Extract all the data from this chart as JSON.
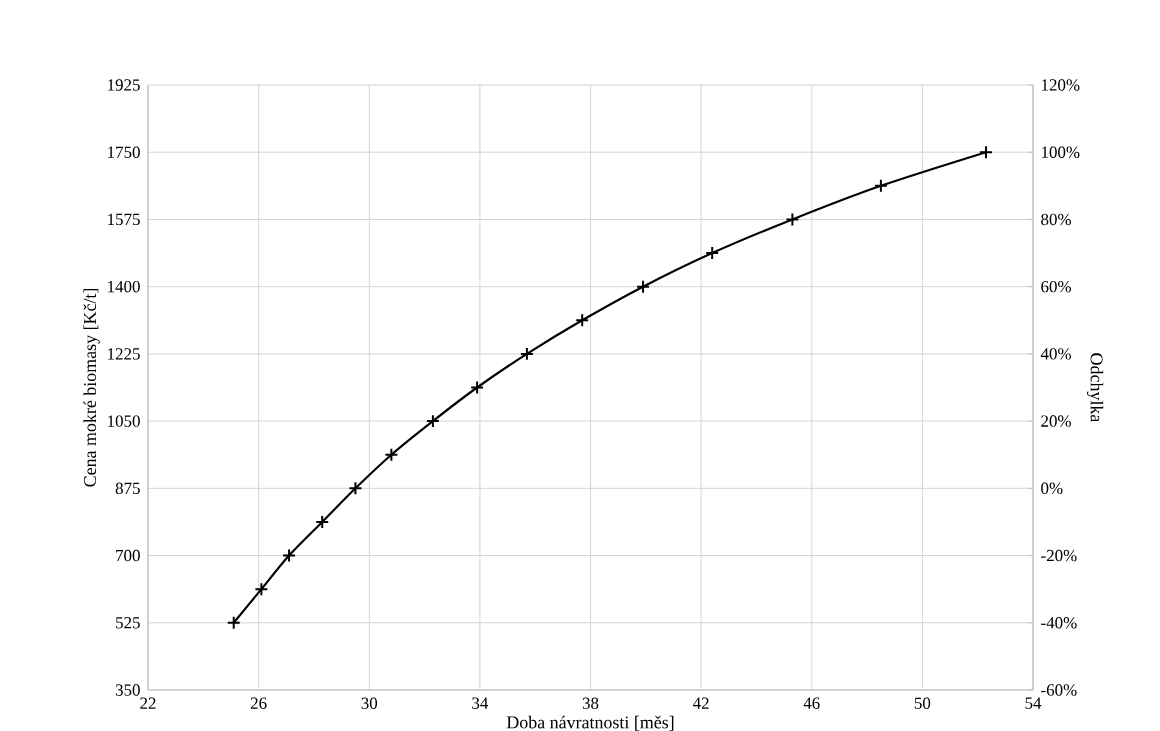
{
  "chart_data": {
    "type": "line",
    "xlabel": "Doba návratnosti [měs]",
    "ylabel": "Cena mokré biomasy [Kč/t]",
    "y2label": "Odchylka",
    "series": [
      {
        "color": "#000000",
        "x": [
          25.1,
          26.1,
          27.1,
          28.3,
          29.5,
          30.8,
          32.3,
          33.9,
          35.7,
          37.7,
          39.9,
          42.4,
          45.3,
          48.5,
          52.3
        ],
        "values": [
          525,
          612.5,
          700,
          787.5,
          875,
          962.5,
          1050,
          1137.5,
          1225,
          1312.5,
          1400,
          1487.5,
          1575,
          1662.5,
          1750
        ]
      }
    ],
    "xlim": [
      22,
      54
    ],
    "xticks": [
      22,
      26,
      30,
      34,
      38,
      42,
      46,
      50,
      54
    ],
    "ylim": [
      350,
      1925
    ],
    "yticks": [
      350,
      525,
      700,
      875,
      1050,
      1225,
      1400,
      1575,
      1750,
      1925
    ],
    "y2lim": [
      -60,
      120
    ],
    "y2ticks": [
      {
        "value": -60,
        "label": "-60%"
      },
      {
        "value": -40,
        "label": "-40%"
      },
      {
        "value": -20,
        "label": "-20%"
      },
      {
        "value": 0,
        "label": "0%"
      },
      {
        "value": 20,
        "label": "20%"
      },
      {
        "value": 40,
        "label": "40%"
      },
      {
        "value": 60,
        "label": "60%"
      },
      {
        "value": 80,
        "label": "80%"
      },
      {
        "value": 100,
        "label": "100%"
      },
      {
        "value": 120,
        "label": "120%"
      }
    ],
    "grid": true,
    "marker": "cross",
    "line_style": "solid"
  }
}
